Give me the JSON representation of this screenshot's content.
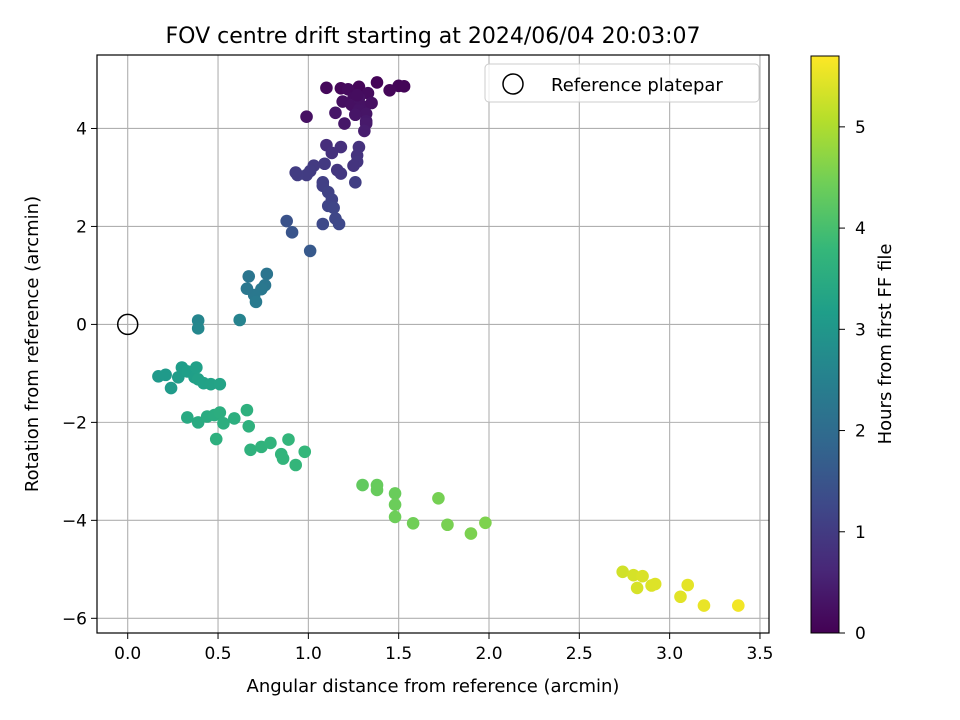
{
  "chart_data": {
    "type": "scatter",
    "title": "FOV centre drift starting at 2024/06/04 20:03:07",
    "xlabel": "Angular distance from reference (arcmin)",
    "ylabel": "Rotation from reference (arcmin)",
    "xlim": [
      -0.17,
      3.55
    ],
    "ylim": [
      -6.3,
      5.5
    ],
    "xticks": [
      0.0,
      0.5,
      1.0,
      1.5,
      2.0,
      2.5,
      3.0,
      3.5
    ],
    "xtick_labels": [
      "0.0",
      "0.5",
      "1.0",
      "1.5",
      "2.0",
      "2.5",
      "3.0",
      "3.5"
    ],
    "yticks": [
      -6,
      -4,
      -2,
      0,
      2,
      4
    ],
    "ytick_labels": [
      "−6",
      "−4",
      "−2",
      "0",
      "2",
      "4"
    ],
    "grid": true,
    "legend_position": "top-right",
    "legend": [
      {
        "label": "Reference platepar",
        "marker": "open-circle"
      }
    ],
    "reference_point": {
      "x": 0.0,
      "y": 0.0
    },
    "colorbar": {
      "label": "Hours from first FF file",
      "colormap": "viridis",
      "range": [
        0,
        5.7
      ],
      "ticks": [
        0,
        1,
        2,
        3,
        4,
        5
      ],
      "tick_labels": [
        "0",
        "1",
        "2",
        "3",
        "4",
        "5"
      ],
      "colors": [
        "#440154",
        "#482878",
        "#3e4989",
        "#31688e",
        "#26828e",
        "#1f9e89",
        "#35b779",
        "#6ece58",
        "#b5de2b",
        "#fde725"
      ]
    },
    "points": [
      [
        1.38,
        4.94,
        0.05
      ],
      [
        1.28,
        4.85,
        0.08
      ],
      [
        1.18,
        4.82,
        0.1
      ],
      [
        1.1,
        4.83,
        0.12
      ],
      [
        1.22,
        4.8,
        0.15
      ],
      [
        1.5,
        4.87,
        0.07
      ],
      [
        1.53,
        4.86,
        0.06
      ],
      [
        1.45,
        4.78,
        0.09
      ],
      [
        1.33,
        4.72,
        0.18
      ],
      [
        1.25,
        4.62,
        0.2
      ],
      [
        1.19,
        4.55,
        0.22
      ],
      [
        1.24,
        4.48,
        0.25
      ],
      [
        1.3,
        4.45,
        0.28
      ],
      [
        1.35,
        4.52,
        0.24
      ],
      [
        1.28,
        4.38,
        0.3
      ],
      [
        1.32,
        4.3,
        0.32
      ],
      [
        1.26,
        4.28,
        0.33
      ],
      [
        1.15,
        4.32,
        0.35
      ],
      [
        1.2,
        4.1,
        0.36
      ],
      [
        1.32,
        4.15,
        0.38
      ],
      [
        1.28,
        4.62,
        0.27
      ],
      [
        1.32,
        4.1,
        0.4
      ],
      [
        1.31,
        3.95,
        0.45
      ],
      [
        0.99,
        4.24,
        0.26
      ],
      [
        1.27,
        4.68,
        0.19
      ],
      [
        1.1,
        3.66,
        0.75
      ],
      [
        1.18,
        3.62,
        0.78
      ],
      [
        1.13,
        3.5,
        0.8
      ],
      [
        1.28,
        3.62,
        0.82
      ],
      [
        1.27,
        3.45,
        0.85
      ],
      [
        1.27,
        3.32,
        0.88
      ],
      [
        1.25,
        3.24,
        0.86
      ],
      [
        1.16,
        3.15,
        0.9
      ],
      [
        1.18,
        3.08,
        0.92
      ],
      [
        1.09,
        3.28,
        0.95
      ],
      [
        1.03,
        3.24,
        0.97
      ],
      [
        1.01,
        3.13,
        1.0
      ],
      [
        0.99,
        3.05,
        1.02
      ],
      [
        0.94,
        3.05,
        1.03
      ],
      [
        0.93,
        3.1,
        1.01
      ],
      [
        1.08,
        2.9,
        1.08
      ],
      [
        1.08,
        2.83,
        1.1
      ],
      [
        1.11,
        2.7,
        1.13
      ],
      [
        1.13,
        2.55,
        1.15
      ],
      [
        1.11,
        2.42,
        1.18
      ],
      [
        1.14,
        2.38,
        1.2
      ],
      [
        1.15,
        2.16,
        1.22
      ],
      [
        1.17,
        2.05,
        1.25
      ],
      [
        1.08,
        2.05,
        1.27
      ],
      [
        1.26,
        2.9,
        1.05
      ],
      [
        0.88,
        2.11,
        1.45
      ],
      [
        0.91,
        1.88,
        1.5
      ],
      [
        1.01,
        1.5,
        1.6
      ],
      [
        0.77,
        1.03,
        2.2
      ],
      [
        0.76,
        0.8,
        2.25
      ],
      [
        0.74,
        0.72,
        2.28
      ],
      [
        0.7,
        0.6,
        2.3
      ],
      [
        0.66,
        0.73,
        2.27
      ],
      [
        0.67,
        0.98,
        2.22
      ],
      [
        0.71,
        0.46,
        2.35
      ],
      [
        0.62,
        0.09,
        2.55
      ],
      [
        0.39,
        0.08,
        2.6
      ],
      [
        0.39,
        -0.08,
        2.65
      ],
      [
        0.17,
        -1.06,
        3.05
      ],
      [
        0.21,
        -1.03,
        3.08
      ],
      [
        0.24,
        -1.3,
        3.1
      ],
      [
        0.28,
        -1.08,
        3.12
      ],
      [
        0.3,
        -0.88,
        3.15
      ],
      [
        0.33,
        -0.96,
        3.18
      ],
      [
        0.37,
        -1.08,
        3.2
      ],
      [
        0.38,
        -0.88,
        3.22
      ],
      [
        0.39,
        -1.12,
        3.24
      ],
      [
        0.42,
        -1.2,
        3.26
      ],
      [
        0.46,
        -1.22,
        3.28
      ],
      [
        0.51,
        -1.22,
        3.3
      ],
      [
        0.33,
        -1.9,
        3.45
      ],
      [
        0.39,
        -2.0,
        3.47
      ],
      [
        0.44,
        -1.88,
        3.5
      ],
      [
        0.48,
        -1.85,
        3.52
      ],
      [
        0.51,
        -1.8,
        3.55
      ],
      [
        0.53,
        -2.02,
        3.57
      ],
      [
        0.59,
        -1.92,
        3.58
      ],
      [
        0.49,
        -2.34,
        3.6
      ],
      [
        0.66,
        -1.75,
        3.62
      ],
      [
        0.67,
        -2.08,
        3.63
      ],
      [
        0.68,
        -2.56,
        3.66
      ],
      [
        0.74,
        -2.5,
        3.68
      ],
      [
        0.79,
        -2.42,
        3.7
      ],
      [
        0.85,
        -2.65,
        3.72
      ],
      [
        0.86,
        -2.74,
        3.73
      ],
      [
        0.89,
        -2.35,
        3.74
      ],
      [
        0.93,
        -2.87,
        3.76
      ],
      [
        0.98,
        -2.6,
        3.78
      ],
      [
        1.3,
        -3.28,
        4.3
      ],
      [
        1.38,
        -3.28,
        4.35
      ],
      [
        1.38,
        -3.38,
        4.36
      ],
      [
        1.48,
        -3.45,
        4.38
      ],
      [
        1.48,
        -3.68,
        4.4
      ],
      [
        1.48,
        -3.93,
        4.42
      ],
      [
        1.58,
        -4.06,
        4.45
      ],
      [
        1.72,
        -3.55,
        4.5
      ],
      [
        1.77,
        -4.09,
        4.52
      ],
      [
        1.9,
        -4.27,
        4.55
      ],
      [
        1.98,
        -4.05,
        4.58
      ],
      [
        2.74,
        -5.05,
        5.3
      ],
      [
        2.8,
        -5.12,
        5.35
      ],
      [
        2.82,
        -5.38,
        5.36
      ],
      [
        2.85,
        -5.14,
        5.38
      ],
      [
        2.9,
        -5.33,
        5.4
      ],
      [
        2.92,
        -5.3,
        5.42
      ],
      [
        3.06,
        -5.56,
        5.45
      ],
      [
        3.1,
        -5.32,
        5.48
      ],
      [
        3.19,
        -5.74,
        5.52
      ],
      [
        3.38,
        -5.74,
        5.6
      ]
    ]
  }
}
